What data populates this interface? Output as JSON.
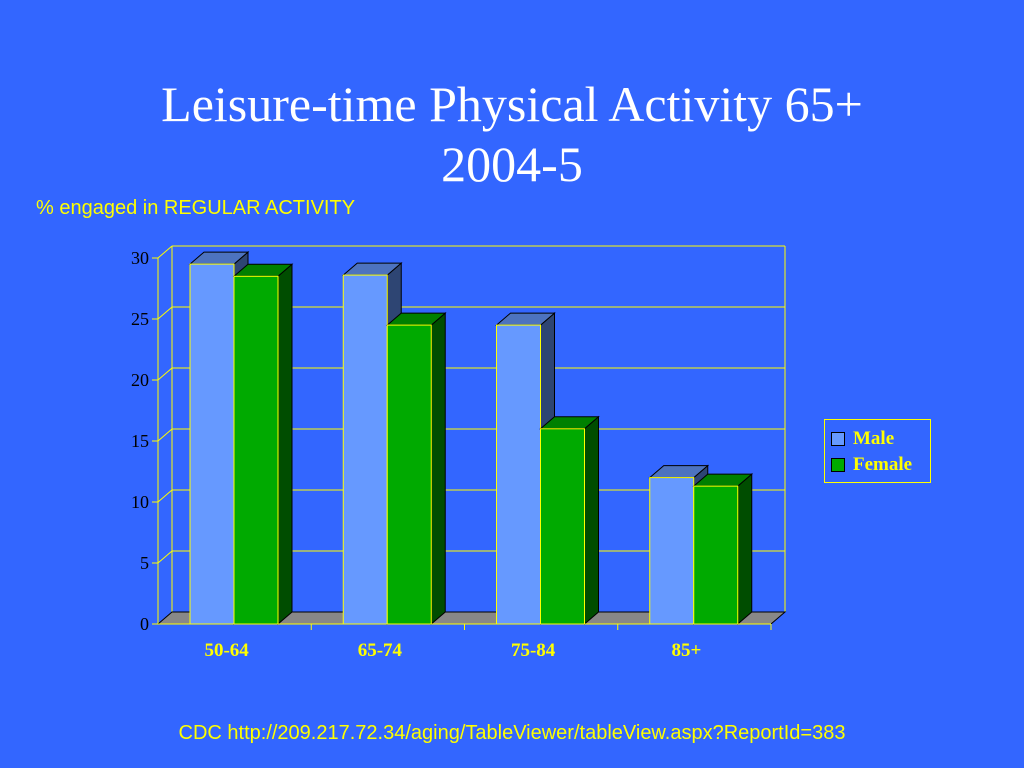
{
  "title_line1": "Leisure-time Physical Activity 65+",
  "title_line2": "2004-5",
  "subtitle": "% engaged in REGULAR ACTIVITY",
  "source": "CDC http://209.217.72.34/aging/TableViewer/tableView.aspx?ReportId=383",
  "colors": {
    "background": "#3366ff",
    "male": "#6699ff",
    "female": "#00aa00",
    "text": "#ffff00",
    "floor": "#888888"
  },
  "chart_data": {
    "type": "bar",
    "categories": [
      "50-64",
      "65-74",
      "75-84",
      "85+"
    ],
    "series": [
      {
        "name": "Male",
        "values": [
          29.5,
          28.6,
          24.5,
          12
        ]
      },
      {
        "name": "Female",
        "values": [
          28.5,
          24.5,
          16,
          11.3
        ]
      }
    ],
    "y_ticks": [
      "0",
      "5",
      "10",
      "15",
      "20",
      "25",
      "30"
    ],
    "ylim": [
      0,
      30
    ],
    "grid": true,
    "legend": "right",
    "three_d": true
  }
}
